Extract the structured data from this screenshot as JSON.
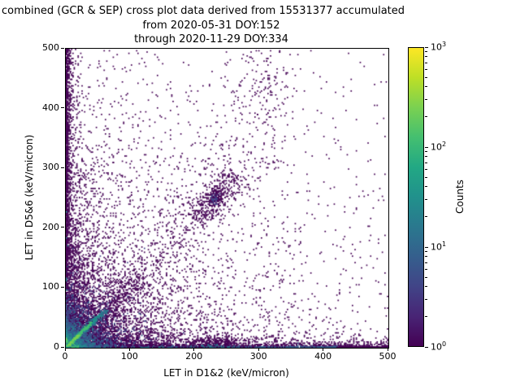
{
  "title": {
    "line1": "combined (GCR & SEP) cross plot data derived from 15531377 accumulated",
    "line2": "from 2020-05-31 DOY:152",
    "line3": "through 2020-11-29 DOY:334"
  },
  "chart_data": {
    "type": "heatmap",
    "subtype": "2d-histogram cross plot (log-color scatter density, viridis)",
    "title": "combined (GCR & SEP) cross plot data derived from 15531377 accumulated from 2020-05-31 DOY:152 through 2020-11-29 DOY:334",
    "events_accumulated": 15531377,
    "xlabel": "LET in D1&2 (keV/micron)",
    "ylabel": "LET in D5&6 (keV/micron)",
    "xlim": [
      0,
      500
    ],
    "ylim": [
      0,
      500
    ],
    "x_ticks": [
      0,
      100,
      200,
      300,
      400,
      500
    ],
    "y_ticks": [
      0,
      100,
      200,
      300,
      400,
      500
    ],
    "grid": false,
    "colorbar": {
      "label": "Counts",
      "scale": "log",
      "min": 1,
      "max": 1000,
      "major_exponents": [
        0,
        1,
        2,
        3
      ],
      "colormap": "viridis",
      "gradient_stops": [
        {
          "pos": 0.0,
          "color": "#440154"
        },
        {
          "pos": 0.1,
          "color": "#482475"
        },
        {
          "pos": 0.2,
          "color": "#414487"
        },
        {
          "pos": 0.3,
          "color": "#355f8d"
        },
        {
          "pos": 0.4,
          "color": "#2a788e"
        },
        {
          "pos": 0.5,
          "color": "#21918c"
        },
        {
          "pos": 0.6,
          "color": "#22a884"
        },
        {
          "pos": 0.7,
          "color": "#44bf70"
        },
        {
          "pos": 0.8,
          "color": "#7ad151"
        },
        {
          "pos": 0.9,
          "color": "#bddf26"
        },
        {
          "pos": 1.0,
          "color": "#fde725"
        }
      ]
    },
    "density_features": [
      "intense hot spot (up to ~10^3 counts, yellow) at origin 0-8 keV/micron in both detectors",
      "bright green-teal diagonal band y~x from origin to ~(60,60)",
      "dense purple/blue triangular wedge near origin fading by ~(120,80)",
      "dark 1-count column along x~0 over full y range and row along y~0 over full x range",
      "faint vertical streaks at small x values up to y~250",
      "sparse diagonal band y~x continuing to ~(330,330) with a denser cluster near (230,250)",
      "loose spray of single counts near x~310, y~380-500",
      "isolated single-count (dark purple) bins scattered over whole plane, density decaying away from origin"
    ],
    "point_model": {
      "seed": 42,
      "clusters": [
        {
          "name": "bg-uniform-far",
          "dist": "uniform",
          "x": [
            0,
            500
          ],
          "y": [
            0,
            500
          ],
          "n": 350,
          "color": "#440154"
        },
        {
          "name": "bg-low-values",
          "dist": "exp2d",
          "cx": 0,
          "cy": 0,
          "sx": 150,
          "sy": 160,
          "n": 3000,
          "color": "#440154"
        },
        {
          "name": "left-column-wide",
          "dist": "bandx",
          "scale": 7,
          "y": [
            0,
            500
          ],
          "n": 900,
          "color": "#440154"
        },
        {
          "name": "left-column-core",
          "dist": "bandx",
          "scale": 1.8,
          "y": [
            0,
            500
          ],
          "n": 900,
          "color": "#440154"
        },
        {
          "name": "bottom-row-wide",
          "dist": "bandy",
          "scale": 7,
          "x": [
            0,
            500
          ],
          "n": 900,
          "color": "#440154"
        },
        {
          "name": "bottom-row-core",
          "dist": "bandy",
          "scale": 1.8,
          "x": [
            0,
            500
          ],
          "n": 900,
          "color": "#440154"
        },
        {
          "name": "bottom-row-blue",
          "dist": "bandy",
          "scale": 0.9,
          "x": [
            0,
            420
          ],
          "n": 380,
          "color": "#355f8d"
        },
        {
          "name": "bottom-row-teal",
          "dist": "bandy",
          "scale": 0.8,
          "x": [
            0,
            150
          ],
          "n": 150,
          "color": "#26828e"
        },
        {
          "name": "bottom-bump-230",
          "dist": "gauss",
          "cx": 232,
          "cy": 6,
          "sx": 26,
          "sy": 7,
          "n": 260,
          "color": "#440154"
        },
        {
          "name": "bottom-bump-230-teal",
          "dist": "gauss",
          "cx": 225,
          "cy": 2,
          "sx": 20,
          "sy": 1.5,
          "n": 60,
          "color": "#2a788e"
        },
        {
          "name": "left-col-teal",
          "dist": "column",
          "cx": 1.5,
          "sigmax": 1.0,
          "yscale": 40,
          "n": 140,
          "color": "#26828e"
        },
        {
          "name": "wedge-bottom",
          "dist": "exp2d",
          "cx": 0,
          "cy": 0,
          "sx": 75,
          "sy": 22,
          "n": 1300,
          "color": "#440154"
        },
        {
          "name": "wedge-left",
          "dist": "exp2d",
          "cx": 0,
          "cy": 0,
          "sx": 22,
          "sy": 70,
          "n": 1100,
          "color": "#440154"
        },
        {
          "name": "diag-fan",
          "dist": "diag",
          "p0": [
            0,
            0
          ],
          "p1": [
            120,
            120
          ],
          "sigma": 14,
          "taper": 1.7,
          "n": 700,
          "color": "#440154"
        },
        {
          "name": "diag-long-sparse",
          "dist": "diag",
          "p0": [
            60,
            60
          ],
          "p1": [
            330,
            330
          ],
          "sigma": 17,
          "taper": 1.3,
          "n": 330,
          "color": "#440154"
        },
        {
          "name": "diag-above",
          "dist": "diag",
          "p0": [
            150,
            190
          ],
          "p1": [
            300,
            420
          ],
          "sigma": 28,
          "taper": 1.0,
          "n": 150,
          "color": "#440154"
        },
        {
          "name": "cluster-230-outer",
          "dist": "diag",
          "p0": [
            200,
            215
          ],
          "p1": [
            265,
            290
          ],
          "sigma": 11,
          "taper": 1.0,
          "n": 300,
          "color": "#440154"
        },
        {
          "name": "cluster-230-core",
          "dist": "gauss",
          "cx": 231,
          "cy": 251,
          "sx": 8,
          "sy": 10,
          "n": 140,
          "color": "#440154"
        },
        {
          "name": "cluster-230-blue",
          "dist": "gauss",
          "cx": 231,
          "cy": 250,
          "sx": 4,
          "sy": 5,
          "n": 30,
          "color": "#414487"
        },
        {
          "name": "upper-spray",
          "dist": "gauss",
          "cx": 312,
          "cy": 440,
          "sx": 22,
          "sy": 50,
          "n": 130,
          "color": "#440154"
        },
        {
          "name": "vstreak-1",
          "dist": "column",
          "cx": 8,
          "sigmax": 1.3,
          "yscale": 55,
          "n": 110,
          "color": "#440154"
        },
        {
          "name": "vstreak-2",
          "dist": "column",
          "cx": 14,
          "sigmax": 1.3,
          "yscale": 75,
          "n": 95,
          "color": "#440154"
        },
        {
          "name": "vstreak-3",
          "dist": "column",
          "cx": 20,
          "sigmax": 1.3,
          "yscale": 95,
          "n": 105,
          "color": "#440154"
        },
        {
          "name": "vstreak-4",
          "dist": "column",
          "cx": 27,
          "sigmax": 1.3,
          "yscale": 70,
          "n": 90,
          "color": "#440154"
        },
        {
          "name": "vstreak-5",
          "dist": "column",
          "cx": 34,
          "sigmax": 1.3,
          "yscale": 85,
          "n": 85,
          "color": "#440154"
        },
        {
          "name": "vstreak-6",
          "dist": "column",
          "cx": 42,
          "sigmax": 1.4,
          "yscale": 110,
          "n": 95,
          "color": "#440154"
        },
        {
          "name": "vstreak-7",
          "dist": "column",
          "cx": 52,
          "sigmax": 1.4,
          "yscale": 65,
          "n": 70,
          "color": "#440154"
        },
        {
          "name": "vstreak-8",
          "dist": "column",
          "cx": 63,
          "sigmax": 1.4,
          "yscale": 50,
          "n": 60,
          "color": "#440154"
        },
        {
          "name": "vstreak-9",
          "dist": "column",
          "cx": 76,
          "sigmax": 1.5,
          "yscale": 42,
          "n": 52,
          "color": "#440154"
        },
        {
          "name": "vstreak-10",
          "dist": "column",
          "cx": 92,
          "sigmax": 1.5,
          "yscale": 36,
          "n": 46,
          "color": "#440154"
        },
        {
          "name": "vstreak-11",
          "dist": "column",
          "cx": 110,
          "sigmax": 1.5,
          "yscale": 30,
          "n": 40,
          "color": "#440154"
        },
        {
          "name": "vstreak-12",
          "dist": "column",
          "cx": 132,
          "sigmax": 1.5,
          "yscale": 26,
          "n": 36,
          "color": "#440154"
        },
        {
          "name": "origin-blob-blue1",
          "dist": "exp2d",
          "cx": 0,
          "cy": 0,
          "sx": 30,
          "sy": 25,
          "n": 1100,
          "color": "#414487"
        },
        {
          "name": "origin-blob-blue2",
          "dist": "exp2d",
          "cx": 0,
          "cy": 0,
          "sx": 18,
          "sy": 15,
          "n": 700,
          "color": "#355f8d"
        },
        {
          "name": "origin-blob-teal1",
          "dist": "exp2d",
          "cx": 0,
          "cy": 0,
          "sx": 11,
          "sy": 9,
          "n": 420,
          "color": "#2a788e"
        },
        {
          "name": "origin-blob-teal2",
          "dist": "exp2d",
          "cx": 0,
          "cy": 0,
          "sx": 6.5,
          "sy": 5.5,
          "n": 260,
          "color": "#21918c"
        },
        {
          "name": "origin-blob-green",
          "dist": "exp2d",
          "cx": 0,
          "cy": 0,
          "sx": 4,
          "sy": 3.4,
          "n": 160,
          "color": "#44bf70"
        },
        {
          "name": "origin-blob-lime",
          "dist": "exp2d",
          "cx": 0,
          "cy": 0,
          "sx": 2.2,
          "sy": 1.9,
          "n": 110,
          "color": "#7ad151"
        },
        {
          "name": "origin-blob-yellow",
          "dist": "exp2d",
          "cx": 0,
          "cy": 0,
          "sx": 1.2,
          "sy": 1.1,
          "n": 80,
          "color": "#fde725"
        },
        {
          "name": "diag-streak-teal-outer",
          "dist": "diag",
          "p0": [
            0,
            0
          ],
          "p1": [
            64,
            64
          ],
          "sigma": 2.6,
          "taper": 1.2,
          "n": 240,
          "color": "#2a788e"
        },
        {
          "name": "diag-streak-teal",
          "dist": "diag",
          "p0": [
            1,
            1
          ],
          "p1": [
            52,
            54
          ],
          "sigma": 1.7,
          "taper": 1.2,
          "n": 170,
          "color": "#21918c"
        },
        {
          "name": "diag-streak-green",
          "dist": "diag",
          "p0": [
            2,
            2
          ],
          "p1": [
            40,
            42
          ],
          "sigma": 1.1,
          "taper": 1.1,
          "n": 110,
          "color": "#44bf70"
        },
        {
          "name": "diag-streak-lime",
          "dist": "diag",
          "p0": [
            2,
            2
          ],
          "p1": [
            20,
            21
          ],
          "sigma": 0.8,
          "taper": 1.0,
          "n": 50,
          "color": "#7ad151"
        }
      ]
    }
  }
}
